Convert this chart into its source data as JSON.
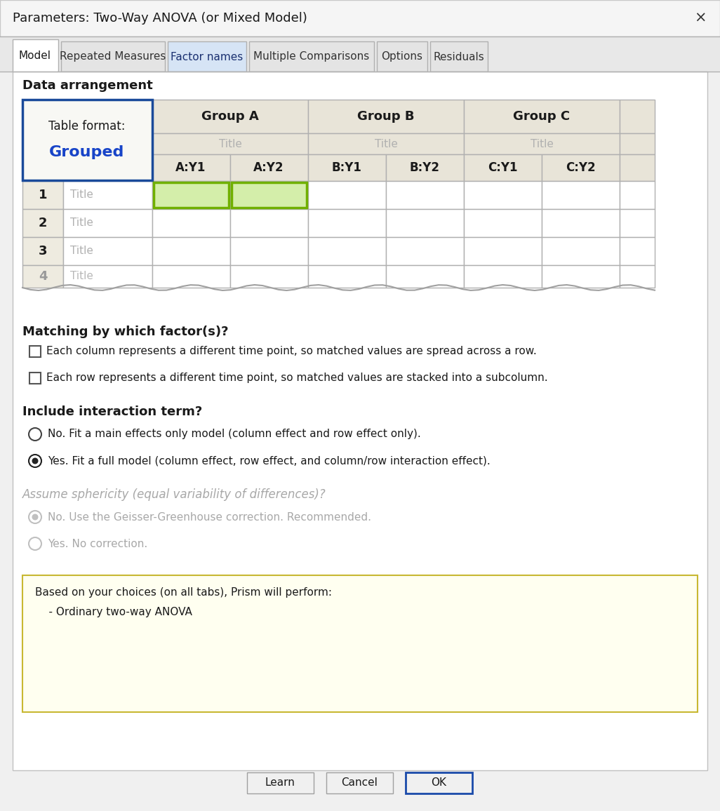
{
  "title": "Parameters: Two-Way ANOVA (or Mixed Model)",
  "tabs": [
    "Model",
    "Repeated Measures",
    "Factor names",
    "Multiple Comparisons",
    "Options",
    "Residuals"
  ],
  "active_tab": "Model",
  "highlighted_tab": "Factor names",
  "section1": "Data arrangement",
  "table_format_label": "Table format:",
  "table_format_value": "Grouped",
  "group_headers": [
    "Group A",
    "Group B",
    "Group C"
  ],
  "col_headers": [
    "A:Y1",
    "A:Y2",
    "B:Y1",
    "B:Y2",
    "C:Y1",
    "C:Y2"
  ],
  "row_labels": [
    "1",
    "2",
    "3",
    "4"
  ],
  "row_titles": [
    "Title",
    "Title",
    "Title",
    "Title"
  ],
  "section2": "Matching by which factor(s)?",
  "checkbox1": "Each column represents a different time point, so matched values are spread across a row.",
  "checkbox2": "Each row represents a different time point, so matched values are stacked into a subcolumn.",
  "section3": "Include interaction term?",
  "radio1": "No. Fit a main effects only model (column effect and row effect only).",
  "radio2": "Yes. Fit a full model (column effect, row effect, and column/row interaction effect).",
  "section4_gray": "Assume sphericity (equal variability of differences)?",
  "radio3": "No. Use the Geisser-Greenhouse correction. Recommended.",
  "radio4": "Yes. No correction.",
  "summary_line1": "Based on your choices (on all tabs), Prism will perform:",
  "summary_line2": "    - Ordinary two-way ANOVA",
  "btn_learn": "Learn",
  "btn_cancel": "Cancel",
  "btn_ok": "OK",
  "bg_color": "#f0f0f0",
  "title_bar_bg": "#f5f5f5",
  "content_bg": "#ffffff",
  "tab_area_bg": "#e8e8e8",
  "active_tab_bg": "#ffffff",
  "highlighted_tab_bg": "#d6e4f5",
  "inactive_tab_bg": "#e4e4e4",
  "table_header_bg": "#e8e4d8",
  "table_row_bg": "#ffffff",
  "table_num_bg": "#eeebe0",
  "table_format_bg": "#f8f8f4",
  "table_format_border": "#1a4a9a",
  "green_cell_bg": "#d4eeaa",
  "green_cell_border": "#70b000",
  "summary_box_bg": "#fffff0",
  "summary_box_border": "#c8b832",
  "grouped_color": "#1844c8",
  "gray_text": "#b0b0b0",
  "dark_text": "#1a1a1a",
  "section_border": "#c8c8c8"
}
